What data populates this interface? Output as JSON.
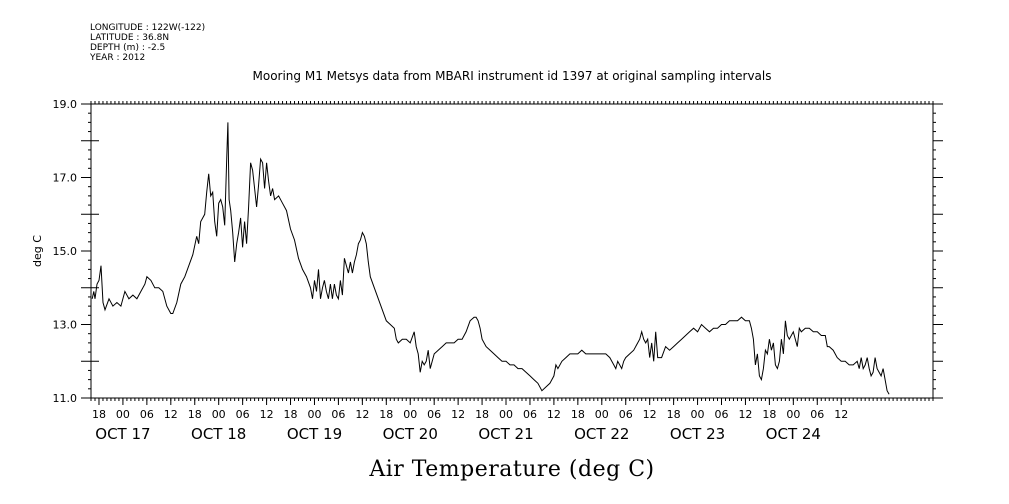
{
  "header": {
    "lines": [
      "LONGITUDE : 122W(-122)",
      "LATITUDE : 36.8N",
      "DEPTH (m) : -2.5",
      "YEAR : 2012"
    ]
  },
  "chart_data": {
    "type": "line",
    "title": "Mooring M1 Metsys data from MBARI instrument id 1397 at original sampling intervals",
    "xlabel": "Air Temperature (deg C)",
    "ylabel": "deg C",
    "ylim": [
      11.0,
      19.0
    ],
    "xlim_hours": [
      -8,
      203
    ],
    "y_ticks": [
      {
        "value": 11.0,
        "label": "11.0"
      },
      {
        "value": 13.0,
        "label": "13.0"
      },
      {
        "value": 15.0,
        "label": "15.0"
      },
      {
        "value": 17.0,
        "label": "17.0"
      },
      {
        "value": 19.0,
        "label": "19.0"
      }
    ],
    "x_hour_labels": [
      "18",
      "00",
      "06",
      "12",
      "18",
      "00",
      "06",
      "12",
      "18",
      "00",
      "06",
      "12",
      "18",
      "00",
      "06",
      "12",
      "18",
      "00",
      "06",
      "12",
      "18",
      "00",
      "06",
      "12",
      "18",
      "00",
      "06",
      "12",
      "18",
      "00",
      "06",
      "12"
    ],
    "x_day_labels": [
      "OCT 17",
      "OCT 18",
      "OCT 19",
      "OCT 20",
      "OCT 21",
      "OCT 22",
      "OCT 23",
      "OCT 24"
    ],
    "series": [
      {
        "color": "#000000",
        "points": [
          [
            -7.7,
            13.7
          ],
          [
            -7.3,
            13.9
          ],
          [
            -7,
            13.7
          ],
          [
            -6.5,
            14.1
          ],
          [
            -6,
            14.2
          ],
          [
            -5.5,
            14.6
          ],
          [
            -5,
            13.6
          ],
          [
            -4.5,
            13.4
          ],
          [
            -3.5,
            13.7
          ],
          [
            -2.5,
            13.5
          ],
          [
            -1.5,
            13.6
          ],
          [
            -0.5,
            13.5
          ],
          [
            0.5,
            13.9
          ],
          [
            1.5,
            13.7
          ],
          [
            2.5,
            13.8
          ],
          [
            3.5,
            13.7
          ],
          [
            4.5,
            13.9
          ],
          [
            5.5,
            14.1
          ],
          [
            6,
            14.3
          ],
          [
            7,
            14.2
          ],
          [
            8,
            14.0
          ],
          [
            9,
            14.0
          ],
          [
            10,
            13.9
          ],
          [
            11,
            13.5
          ],
          [
            12,
            13.3
          ],
          [
            12.5,
            13.3
          ],
          [
            13.5,
            13.6
          ],
          [
            14.5,
            14.1
          ],
          [
            15.5,
            14.3
          ],
          [
            16.5,
            14.6
          ],
          [
            17.5,
            14.9
          ],
          [
            18.5,
            15.4
          ],
          [
            19,
            15.2
          ],
          [
            19.5,
            15.8
          ],
          [
            20.5,
            16.0
          ],
          [
            21,
            16.6
          ],
          [
            21.5,
            17.1
          ],
          [
            22,
            16.5
          ],
          [
            22.5,
            16.6
          ],
          [
            23,
            15.8
          ],
          [
            23.5,
            15.4
          ],
          [
            24,
            16.3
          ],
          [
            24.5,
            16.4
          ],
          [
            25,
            16.2
          ],
          [
            25.5,
            15.7
          ],
          [
            26,
            17.5
          ],
          [
            26.3,
            18.5
          ],
          [
            26.6,
            16.4
          ],
          [
            27,
            16.1
          ],
          [
            27.5,
            15.5
          ],
          [
            28,
            14.7
          ],
          [
            28.5,
            15.2
          ],
          [
            29,
            15.5
          ],
          [
            29.5,
            15.9
          ],
          [
            30,
            15.1
          ],
          [
            30.5,
            15.8
          ],
          [
            31,
            15.2
          ],
          [
            31.5,
            16.2
          ],
          [
            32,
            17.4
          ],
          [
            32.5,
            17.2
          ],
          [
            33,
            16.7
          ],
          [
            33.5,
            16.2
          ],
          [
            34,
            16.8
          ],
          [
            34.5,
            17.5
          ],
          [
            35,
            17.4
          ],
          [
            35.5,
            16.7
          ],
          [
            36,
            17.4
          ],
          [
            36.5,
            16.9
          ],
          [
            37,
            16.5
          ],
          [
            37.5,
            16.7
          ],
          [
            38,
            16.4
          ],
          [
            39,
            16.5
          ],
          [
            40,
            16.3
          ],
          [
            41,
            16.1
          ],
          [
            42,
            15.6
          ],
          [
            43,
            15.3
          ],
          [
            44,
            14.8
          ],
          [
            45,
            14.5
          ],
          [
            46,
            14.3
          ],
          [
            47,
            14.0
          ],
          [
            47.5,
            13.7
          ],
          [
            48,
            14.2
          ],
          [
            48.5,
            13.9
          ],
          [
            49,
            14.5
          ],
          [
            49.5,
            13.7
          ],
          [
            50,
            14.0
          ],
          [
            50.5,
            14.2
          ],
          [
            51,
            13.9
          ],
          [
            51.5,
            13.7
          ],
          [
            52,
            14.1
          ],
          [
            52.5,
            13.7
          ],
          [
            53,
            14.1
          ],
          [
            53.5,
            13.8
          ],
          [
            54,
            13.7
          ],
          [
            54.5,
            14.2
          ],
          [
            55,
            13.8
          ],
          [
            55.5,
            14.8
          ],
          [
            56,
            14.6
          ],
          [
            56.5,
            14.4
          ],
          [
            57,
            14.7
          ],
          [
            57.5,
            14.4
          ],
          [
            58,
            14.7
          ],
          [
            58.5,
            14.9
          ],
          [
            59,
            15.2
          ],
          [
            59.5,
            15.3
          ],
          [
            60,
            15.5
          ],
          [
            60.5,
            15.4
          ],
          [
            61,
            15.2
          ],
          [
            61.5,
            14.7
          ],
          [
            62,
            14.3
          ],
          [
            63,
            14.0
          ],
          [
            64,
            13.7
          ],
          [
            65,
            13.4
          ],
          [
            66,
            13.1
          ],
          [
            67,
            13.0
          ],
          [
            68,
            12.9
          ],
          [
            68.5,
            12.6
          ],
          [
            69,
            12.5
          ],
          [
            70,
            12.6
          ],
          [
            71,
            12.6
          ],
          [
            72,
            12.5
          ],
          [
            73,
            12.8
          ],
          [
            73.5,
            12.4
          ],
          [
            74,
            12.2
          ],
          [
            74.5,
            11.7
          ],
          [
            75,
            12.0
          ],
          [
            75.5,
            11.9
          ],
          [
            76,
            12.0
          ],
          [
            76.5,
            12.3
          ],
          [
            77,
            11.8
          ],
          [
            77.5,
            12.0
          ],
          [
            78,
            12.2
          ],
          [
            79,
            12.3
          ],
          [
            80,
            12.4
          ],
          [
            81,
            12.5
          ],
          [
            82,
            12.5
          ],
          [
            83,
            12.5
          ],
          [
            84,
            12.6
          ],
          [
            85,
            12.6
          ],
          [
            86,
            12.8
          ],
          [
            87,
            13.1
          ],
          [
            88,
            13.2
          ],
          [
            88.5,
            13.2
          ],
          [
            89,
            13.1
          ],
          [
            89.5,
            12.9
          ],
          [
            90,
            12.6
          ],
          [
            91,
            12.4
          ],
          [
            92,
            12.3
          ],
          [
            93,
            12.2
          ],
          [
            94,
            12.1
          ],
          [
            95,
            12.0
          ],
          [
            96,
            12.0
          ],
          [
            97,
            11.9
          ],
          [
            98,
            11.9
          ],
          [
            99,
            11.8
          ],
          [
            100,
            11.8
          ],
          [
            101,
            11.7
          ],
          [
            102,
            11.6
          ],
          [
            103,
            11.5
          ],
          [
            104,
            11.4
          ],
          [
            105,
            11.2
          ],
          [
            106,
            11.3
          ],
          [
            107,
            11.4
          ],
          [
            108,
            11.6
          ],
          [
            108.5,
            11.9
          ],
          [
            109,
            11.8
          ],
          [
            110,
            12.0
          ],
          [
            111,
            12.1
          ],
          [
            112,
            12.2
          ],
          [
            113,
            12.2
          ],
          [
            114,
            12.2
          ],
          [
            115,
            12.3
          ],
          [
            116,
            12.2
          ],
          [
            117,
            12.2
          ],
          [
            118,
            12.2
          ],
          [
            119,
            12.2
          ],
          [
            120,
            12.2
          ],
          [
            121,
            12.2
          ],
          [
            122,
            12.1
          ],
          [
            122.5,
            12.0
          ],
          [
            123,
            11.9
          ],
          [
            123.5,
            11.8
          ],
          [
            124,
            12.0
          ],
          [
            124.5,
            11.9
          ],
          [
            125,
            11.8
          ],
          [
            125.5,
            12.0
          ],
          [
            126,
            12.1
          ],
          [
            127,
            12.2
          ],
          [
            128,
            12.3
          ],
          [
            129,
            12.5
          ],
          [
            129.5,
            12.6
          ],
          [
            130,
            12.8
          ],
          [
            130.5,
            12.6
          ],
          [
            131,
            12.5
          ],
          [
            131.5,
            12.6
          ],
          [
            132,
            12.1
          ],
          [
            132.5,
            12.5
          ],
          [
            133,
            12.0
          ],
          [
            133.5,
            12.8
          ],
          [
            134,
            12.1
          ],
          [
            135,
            12.1
          ],
          [
            136,
            12.4
          ],
          [
            137,
            12.3
          ],
          [
            138,
            12.4
          ],
          [
            139,
            12.5
          ],
          [
            140,
            12.6
          ],
          [
            141,
            12.7
          ],
          [
            142,
            12.8
          ],
          [
            143,
            12.9
          ],
          [
            144,
            12.8
          ],
          [
            145,
            13.0
          ],
          [
            146,
            12.9
          ],
          [
            147,
            12.8
          ],
          [
            148,
            12.9
          ],
          [
            149,
            12.9
          ],
          [
            150,
            13.0
          ],
          [
            151,
            13.0
          ],
          [
            152,
            13.1
          ],
          [
            153,
            13.1
          ],
          [
            154,
            13.1
          ],
          [
            155,
            13.2
          ],
          [
            156,
            13.1
          ],
          [
            157,
            13.1
          ],
          [
            157.5,
            12.9
          ],
          [
            158,
            12.6
          ],
          [
            158.5,
            11.9
          ],
          [
            159,
            12.2
          ],
          [
            159.5,
            11.6
          ],
          [
            160,
            11.5
          ],
          [
            160.5,
            11.8
          ],
          [
            161,
            12.3
          ],
          [
            161.5,
            12.2
          ],
          [
            162,
            12.6
          ],
          [
            162.5,
            12.3
          ],
          [
            163,
            12.5
          ],
          [
            163.5,
            11.9
          ],
          [
            164,
            11.8
          ],
          [
            164.5,
            12.0
          ],
          [
            165,
            12.6
          ],
          [
            165.5,
            12.2
          ],
          [
            166,
            13.1
          ],
          [
            166.5,
            12.7
          ],
          [
            167,
            12.6
          ],
          [
            167.5,
            12.7
          ],
          [
            168,
            12.8
          ],
          [
            168.5,
            12.6
          ],
          [
            169,
            12.4
          ],
          [
            169.5,
            12.9
          ],
          [
            170,
            12.8
          ],
          [
            171,
            12.9
          ],
          [
            172,
            12.9
          ],
          [
            173,
            12.8
          ],
          [
            174,
            12.8
          ],
          [
            175,
            12.7
          ],
          [
            176,
            12.7
          ],
          [
            176.5,
            12.4
          ],
          [
            177,
            12.4
          ],
          [
            178,
            12.3
          ],
          [
            179,
            12.1
          ],
          [
            180,
            12.0
          ],
          [
            181,
            12.0
          ],
          [
            182,
            11.9
          ],
          [
            183,
            11.9
          ],
          [
            184,
            12.0
          ],
          [
            184.5,
            11.8
          ],
          [
            185,
            12.1
          ],
          [
            185.5,
            11.8
          ],
          [
            186,
            11.9
          ],
          [
            186.5,
            12.1
          ],
          [
            187,
            11.8
          ],
          [
            187.5,
            11.6
          ],
          [
            188,
            11.7
          ],
          [
            188.5,
            12.1
          ],
          [
            189,
            11.8
          ],
          [
            189.5,
            11.7
          ],
          [
            190,
            11.6
          ],
          [
            190.5,
            11.8
          ],
          [
            191,
            11.5
          ],
          [
            191.5,
            11.2
          ],
          [
            192,
            11.1
          ]
        ]
      }
    ]
  }
}
